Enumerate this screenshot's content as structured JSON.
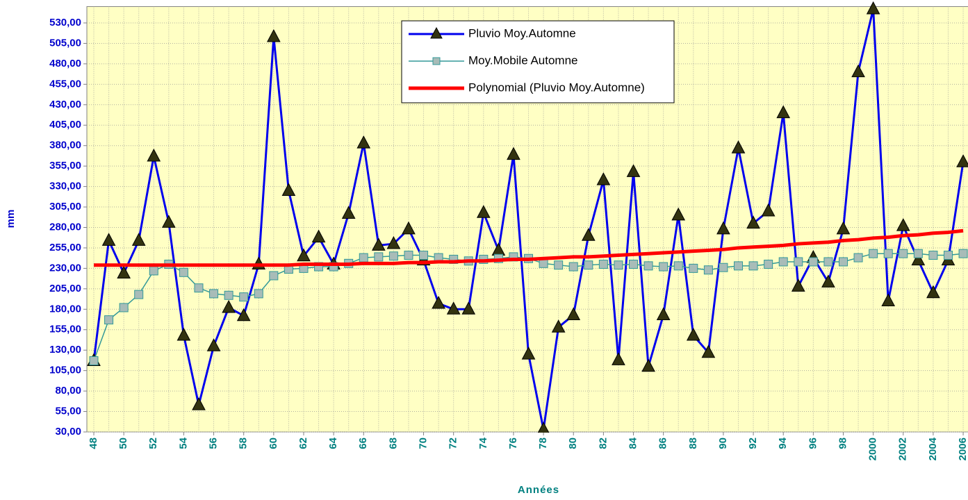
{
  "chart_data": {
    "type": "line",
    "x_label": "Années",
    "y_label": "mm",
    "categories": [
      "48",
      null,
      "50",
      null,
      "52",
      null,
      "54",
      null,
      "56",
      null,
      "58",
      null,
      "60",
      null,
      "62",
      null,
      "64",
      null,
      "66",
      null,
      "68",
      null,
      "70",
      null,
      "72",
      null,
      "74",
      null,
      "76",
      null,
      "78",
      null,
      "80",
      null,
      "82",
      null,
      "84",
      null,
      "86",
      null,
      "88",
      null,
      "90",
      null,
      "92",
      null,
      "94",
      null,
      "96",
      null,
      "98",
      null,
      "2000",
      null,
      "2002",
      null,
      "2004",
      null,
      "2006"
    ],
    "series": [
      {
        "name": "Pluvio Moy.Automne",
        "color": "#0000ee",
        "marker": "triangle",
        "values": [
          117,
          264,
          224,
          264,
          367,
          286,
          148,
          63,
          135,
          182,
          172,
          235,
          513,
          325,
          245,
          268,
          235,
          297,
          383,
          258,
          260,
          278,
          240,
          187,
          180,
          180,
          298,
          252,
          369,
          125,
          33,
          158,
          173,
          270,
          338,
          118,
          348,
          110,
          173,
          295,
          148,
          127,
          278,
          377,
          285,
          300,
          420,
          208,
          243,
          213,
          278,
          470,
          547,
          190,
          282,
          240,
          200,
          240,
          360
        ]
      },
      {
        "name": "Moy.Mobile Automne",
        "color": "#339999",
        "marker": "square",
        "values": [
          117,
          167,
          182,
          198,
          227,
          235,
          225,
          206,
          199,
          197,
          195,
          199,
          221,
          229,
          230,
          232,
          232,
          236,
          243,
          244,
          245,
          246,
          246,
          243,
          241,
          239,
          241,
          242,
          244,
          242,
          236,
          234,
          232,
          234,
          235,
          234,
          235,
          233,
          232,
          233,
          230,
          228,
          231,
          233,
          233,
          235,
          238,
          238,
          238,
          238,
          238,
          243,
          248,
          248,
          248,
          248,
          246,
          246,
          248
        ]
      },
      {
        "name": "Polynomial (Pluvio Moy.Automne)",
        "color": "#ff0000",
        "marker": "none",
        "values": [
          234,
          234,
          234,
          234,
          234,
          234,
          234,
          234,
          234,
          234,
          234,
          234,
          234,
          234,
          235,
          235,
          235,
          235,
          236,
          236,
          236,
          237,
          237,
          238,
          238,
          239,
          239,
          240,
          241,
          241,
          242,
          243,
          244,
          244,
          245,
          246,
          247,
          248,
          249,
          250,
          251,
          252,
          253,
          255,
          256,
          257,
          258,
          260,
          261,
          262,
          264,
          265,
          267,
          268,
          270,
          271,
          273,
          274,
          276
        ]
      }
    ],
    "ylim": [
      30,
      550
    ],
    "yticks": [
      {
        "value": 30,
        "label": "30,00"
      },
      {
        "value": 55,
        "label": "55,00"
      },
      {
        "value": 80,
        "label": "80,00"
      },
      {
        "value": 105,
        "label": "105,00"
      },
      {
        "value": 130,
        "label": "130,00"
      },
      {
        "value": 155,
        "label": "155,00"
      },
      {
        "value": 180,
        "label": "180,00"
      },
      {
        "value": 205,
        "label": "205,00"
      },
      {
        "value": 230,
        "label": "230,00"
      },
      {
        "value": 255,
        "label": "255,00"
      },
      {
        "value": 280,
        "label": "280,00"
      },
      {
        "value": 305,
        "label": "305,00"
      },
      {
        "value": 330,
        "label": "330,00"
      },
      {
        "value": 355,
        "label": "355,00"
      },
      {
        "value": 380,
        "label": "380,00"
      },
      {
        "value": 405,
        "label": "405,00"
      },
      {
        "value": 430,
        "label": "430,00"
      },
      {
        "value": 455,
        "label": "455,00"
      },
      {
        "value": 480,
        "label": "480,00"
      },
      {
        "value": 505,
        "label": "505,00"
      },
      {
        "value": 530,
        "label": "530,00"
      }
    ],
    "grid": true,
    "legend_position": "top"
  }
}
